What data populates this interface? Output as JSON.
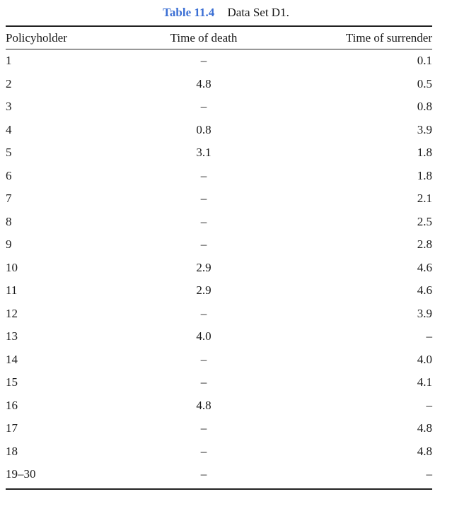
{
  "table": {
    "number": "Table 11.4",
    "title": "Data Set D1.",
    "columns": [
      "Policyholder",
      "Time of death",
      "Time of surrender"
    ],
    "rows": [
      {
        "policyholder": "1",
        "death": "–",
        "surrender": "0.1"
      },
      {
        "policyholder": "2",
        "death": "4.8",
        "surrender": "0.5"
      },
      {
        "policyholder": "3",
        "death": "–",
        "surrender": "0.8"
      },
      {
        "policyholder": "4",
        "death": "0.8",
        "surrender": "3.9"
      },
      {
        "policyholder": "5",
        "death": "3.1",
        "surrender": "1.8"
      },
      {
        "policyholder": "6",
        "death": "–",
        "surrender": "1.8"
      },
      {
        "policyholder": "7",
        "death": "–",
        "surrender": "2.1"
      },
      {
        "policyholder": "8",
        "death": "–",
        "surrender": "2.5"
      },
      {
        "policyholder": "9",
        "death": "–",
        "surrender": "2.8"
      },
      {
        "policyholder": "10",
        "death": "2.9",
        "surrender": "4.6"
      },
      {
        "policyholder": "11",
        "death": "2.9",
        "surrender": "4.6"
      },
      {
        "policyholder": "12",
        "death": "–",
        "surrender": "3.9"
      },
      {
        "policyholder": "13",
        "death": "4.0",
        "surrender": "–"
      },
      {
        "policyholder": "14",
        "death": "–",
        "surrender": "4.0"
      },
      {
        "policyholder": "15",
        "death": "–",
        "surrender": "4.1"
      },
      {
        "policyholder": "16",
        "death": "4.8",
        "surrender": "–"
      },
      {
        "policyholder": "17",
        "death": "–",
        "surrender": "4.8"
      },
      {
        "policyholder": "18",
        "death": "–",
        "surrender": "4.8"
      },
      {
        "policyholder": "19–30",
        "death": "–",
        "surrender": "–"
      }
    ]
  }
}
